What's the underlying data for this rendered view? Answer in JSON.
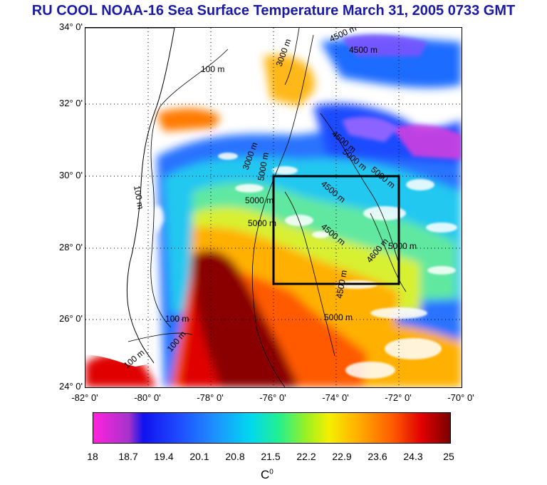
{
  "title": "RU COOL  NOAA-16 Sea Surface Temperature March 31, 2005 0733 GMT",
  "lat_labels": [
    "34° 0'",
    "32° 0'",
    "30° 0'",
    "28° 0'",
    "26° 0'",
    "24° 0'"
  ],
  "lon_labels": [
    "-82° 0'",
    "-80° 0'",
    "-78° 0'",
    "-76° 0'",
    "-74° 0'",
    "-72° 0'",
    "-70° 0'"
  ],
  "contour_labels": [
    "100 m",
    "100 m",
    "100 m",
    "100 m",
    "100 m",
    "3000 m",
    "3000 m",
    "4500 m",
    "4500 m",
    "5000 m",
    "5000 m",
    "5000 m",
    "4500 m",
    "4500 m",
    "5000 m",
    "4500 m",
    "5000 m",
    "5000 m",
    "4500 m",
    "4600 m",
    "5000 m"
  ],
  "colorbar": {
    "ticks": [
      "18",
      "18.7",
      "19.4",
      "20.1",
      "20.8",
      "21.5",
      "22.2",
      "22.9",
      "23.6",
      "24.3",
      "25"
    ],
    "units": "C",
    "units_sup": "0"
  }
}
